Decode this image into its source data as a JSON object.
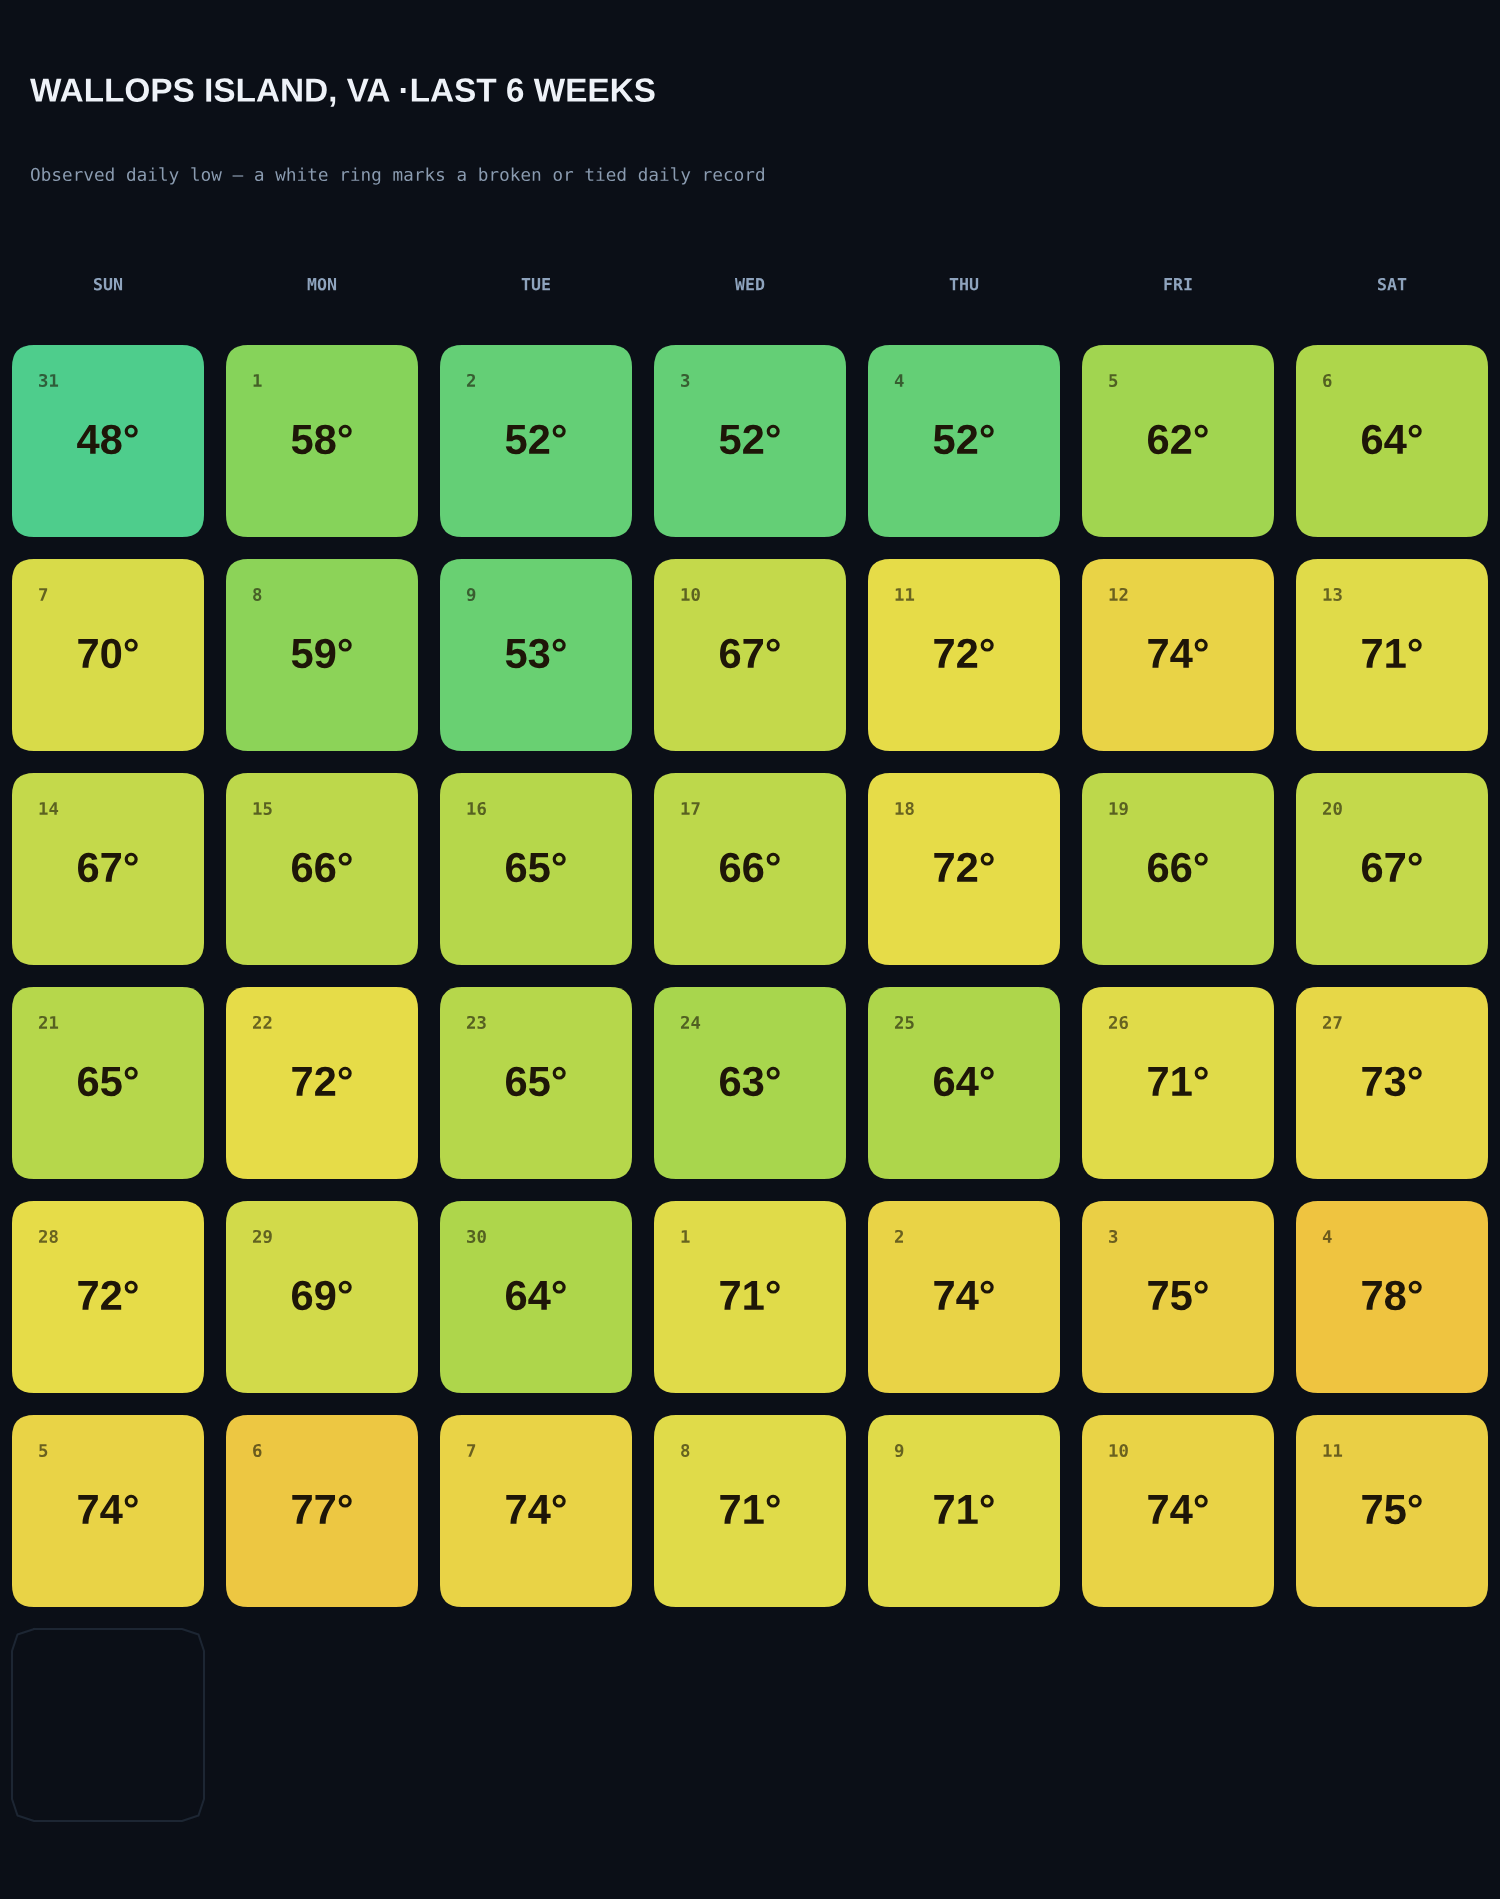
{
  "chart_data": {
    "type": "heatmap",
    "title": "WALLOPS ISLAND, VA ·LAST 6 WEEKS",
    "subtitle": "Observed daily low — a white ring marks a broken or tied daily record",
    "categories": [
      "SUN",
      "MON",
      "TUE",
      "WED",
      "THU",
      "FRI",
      "SAT"
    ],
    "y_categories": [
      null,
      null,
      null,
      null,
      null,
      null
    ],
    "cells": [
      [
        48,
        58,
        52,
        52,
        52,
        62,
        64
      ],
      [
        70,
        59,
        53,
        67,
        72,
        74,
        71
      ],
      [
        67,
        66,
        65,
        66,
        72,
        66,
        67
      ],
      [
        65,
        72,
        65,
        63,
        64,
        71,
        73
      ],
      [
        72,
        69,
        64,
        71,
        74,
        75,
        78
      ],
      [
        74,
        77,
        74,
        71,
        71,
        74,
        75
      ]
    ],
    "cell_labels": [
      [
        "48°",
        "58°",
        "52°",
        "52°",
        "52°",
        "62°",
        "64°"
      ],
      [
        "70°",
        "59°",
        "53°",
        "67°",
        "72°",
        "74°",
        "71°"
      ],
      [
        "67°",
        "66°",
        "65°",
        "66°",
        "72°",
        "66°",
        "67°"
      ],
      [
        "65°",
        "72°",
        "65°",
        "63°",
        "64°",
        "71°",
        "73°"
      ],
      [
        "72°",
        "69°",
        "64°",
        "71°",
        "74°",
        "75°",
        "78°"
      ],
      [
        "74°",
        "77°",
        "74°",
        "71°",
        "71°",
        "74°",
        "75°"
      ]
    ],
    "annotations": [
      "31",
      "1",
      "2",
      "3",
      "4",
      "5",
      "6",
      "7",
      "8",
      "9",
      "10",
      "11",
      "12",
      "13",
      "14",
      "15",
      "16",
      "17",
      "18",
      "19",
      "20",
      "21",
      "22",
      "23",
      "24",
      "25",
      "26",
      "27",
      "28",
      "29",
      "30",
      "1",
      "2",
      "3",
      "4",
      "5",
      "6",
      "7",
      "8",
      "9",
      "10",
      "11"
    ]
  }
}
